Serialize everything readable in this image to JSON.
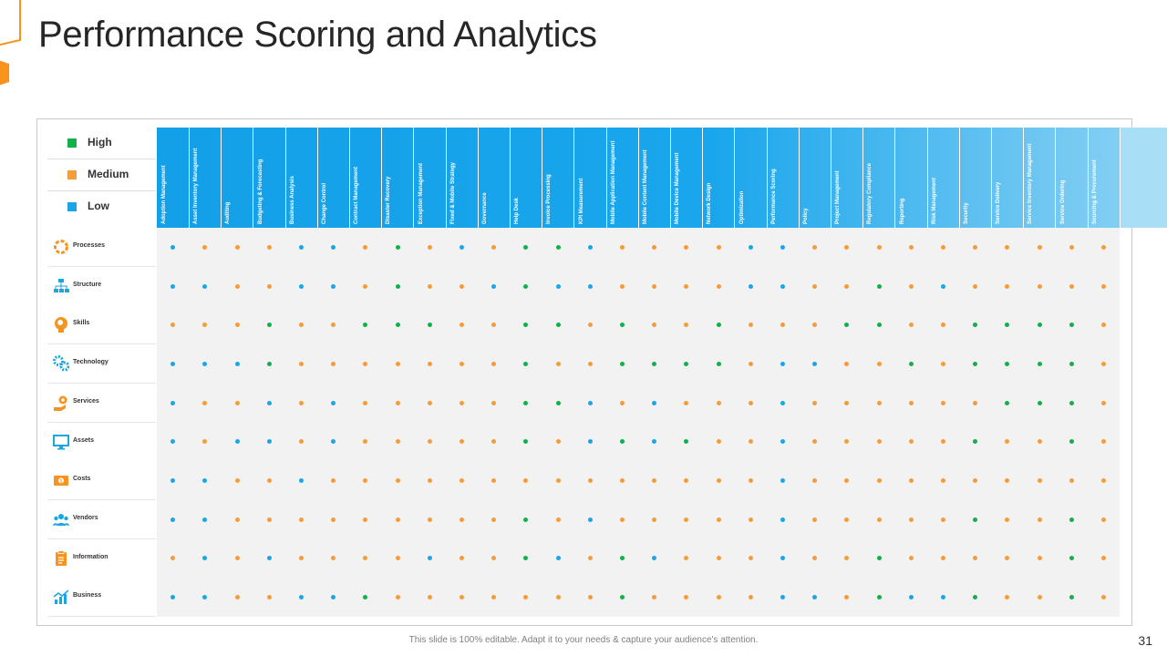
{
  "slide": {
    "title": "Performance Scoring and Analytics",
    "footer": "This slide is 100% editable. Adapt it to your needs & capture your audience's attention.",
    "page_number": "31"
  },
  "colors": {
    "high": "#12b04a",
    "medium": "#f59b3a",
    "low": "#1aa6e4",
    "accent": "#f7931e"
  },
  "legend": [
    {
      "key": "H",
      "label": "High"
    },
    {
      "key": "M",
      "label": "Medium"
    },
    {
      "key": "L",
      "label": "Low"
    }
  ],
  "columns": [
    "Adoption Management",
    "Asset Inventory Management",
    "Auditing",
    "Budgeting & Forecasting",
    "Business Analysis",
    "Change Control",
    "Contract Management",
    "Disaster Recovery",
    "Exception Management",
    "Fixed & Mobile Strategy",
    "Governance",
    "Help Desk",
    "Invoice Processing",
    "KPI Measurement",
    "Mobile Application Management",
    "Mobile Content Management",
    "Mobile Device Management",
    "Network Design",
    "Optimization",
    "Performance Scoring",
    "Policy",
    "Project Management",
    "Regulatory Compliance",
    "Reporting",
    "Risk Management",
    "Security",
    "Service Delivery",
    "Service Inventory Management",
    "Service Ordering",
    "Sourcing & Procurement"
  ],
  "rows": [
    {
      "label": "Processes",
      "icon": "gear-cycle-icon",
      "ratings": "LMMMLLMHMLMHHLMMMMLLMMMMMMMMMM"
    },
    {
      "label": "Structure",
      "icon": "org-chart-icon",
      "ratings": "LLMMLLMHMMLHLLMMMMLLMMHMLMMMMM"
    },
    {
      "label": "Skills",
      "icon": "head-gears-icon",
      "ratings": "MMMHMMHHHMMHHMHMMHMMMHHMMHHHHM"
    },
    {
      "label": "Technology",
      "icon": "gears-icon",
      "ratings": "LLLHMMMMMMMHMMHHHHMLLMMHMHHHHM"
    },
    {
      "label": "Services",
      "icon": "hand-gear-icon",
      "ratings": "LMMLMLMMMMMHHLMLMMMLMMMMMMHHHM"
    },
    {
      "label": "Assets",
      "icon": "monitor-icon",
      "ratings": "LMLLMLMMMMMHMLHLHMMLMMMMMHMMHM"
    },
    {
      "label": "Costs",
      "icon": "money-icon",
      "ratings": "LLMMLMMMMMMMMMMMMMMLMMMMMMMMMM"
    },
    {
      "label": "Vendors",
      "icon": "users-icon",
      "ratings": "LLMMMMMMMMMHMLMMMMMLMMMMMHMMHM"
    },
    {
      "label": "Information",
      "icon": "clipboard-icon",
      "ratings": "MLMLMMMMLMMHLMHLMMMLMMHMMMMMHM"
    },
    {
      "label": "Business",
      "icon": "chart-growth-icon",
      "ratings": "LLMMLLHMMMMMMMHMMMMLLMHLLHMMHM"
    }
  ]
}
